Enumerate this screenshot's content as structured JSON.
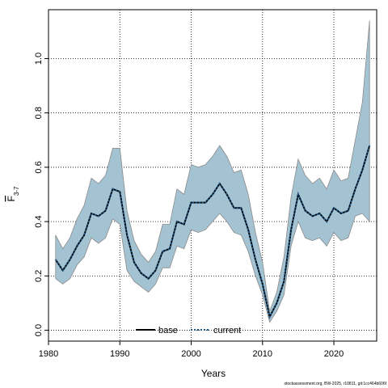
{
  "chart_data": {
    "type": "line",
    "xlabel": "Years",
    "ylabel": "F",
    "ylabel_sub": "3-7",
    "xlim": [
      1980,
      2026
    ],
    "ylim": [
      -0.04,
      1.18
    ],
    "xticks": [
      1980,
      1990,
      2000,
      2010,
      2020
    ],
    "yticks": [
      0.0,
      0.2,
      0.4,
      0.6,
      0.8,
      1.0
    ],
    "ytick_labels": [
      "0.0",
      "0.2",
      "0.4",
      "0.6",
      "0.8",
      "1.0"
    ],
    "grid": true,
    "legend_position": "bottom-center",
    "x": [
      1981,
      1982,
      1983,
      1984,
      1985,
      1986,
      1987,
      1988,
      1989,
      1990,
      1991,
      1992,
      1993,
      1994,
      1995,
      1996,
      1997,
      1998,
      1999,
      2000,
      2001,
      2002,
      2003,
      2004,
      2005,
      2006,
      2007,
      2008,
      2009,
      2010,
      2011,
      2012,
      2013,
      2014,
      2015,
      2016,
      2017,
      2018,
      2019,
      2020,
      2021,
      2022,
      2023,
      2024,
      2025
    ],
    "series": [
      {
        "name": "base",
        "style": "solid",
        "color": "#000000",
        "values": [
          0.26,
          0.22,
          0.26,
          0.31,
          0.35,
          0.43,
          0.42,
          0.44,
          0.52,
          0.51,
          0.35,
          0.25,
          0.21,
          0.19,
          0.22,
          0.29,
          0.3,
          0.4,
          0.39,
          0.47,
          0.47,
          0.47,
          0.5,
          0.54,
          0.5,
          0.45,
          0.45,
          0.37,
          0.26,
          0.17,
          0.05,
          0.1,
          0.18,
          0.37,
          0.5,
          0.44,
          0.42,
          0.43,
          0.4,
          0.45,
          0.43,
          0.44,
          0.52,
          0.59,
          0.68
        ]
      },
      {
        "name": "current",
        "style": "dotted",
        "color": "#1f5a8a",
        "values": [
          0.26,
          0.22,
          0.26,
          0.31,
          0.35,
          0.43,
          0.42,
          0.44,
          0.52,
          0.51,
          0.35,
          0.25,
          0.21,
          0.19,
          0.22,
          0.29,
          0.3,
          0.4,
          0.39,
          0.47,
          0.47,
          0.47,
          0.5,
          0.54,
          0.5,
          0.45,
          0.45,
          0.37,
          0.26,
          0.17,
          0.05,
          0.1,
          0.18,
          0.37,
          0.5,
          0.44,
          0.42,
          0.43,
          0.4,
          0.45,
          0.43,
          0.44,
          0.52,
          0.59,
          0.68
        ]
      }
    ],
    "band": {
      "color": "#a3c3d3",
      "lower": [
        0.19,
        0.17,
        0.19,
        0.24,
        0.27,
        0.34,
        0.32,
        0.34,
        0.41,
        0.39,
        0.22,
        0.18,
        0.16,
        0.14,
        0.17,
        0.23,
        0.23,
        0.31,
        0.3,
        0.37,
        0.36,
        0.37,
        0.4,
        0.43,
        0.4,
        0.36,
        0.35,
        0.29,
        0.2,
        0.13,
        0.03,
        0.07,
        0.13,
        0.31,
        0.4,
        0.34,
        0.33,
        0.34,
        0.31,
        0.36,
        0.33,
        0.34,
        0.42,
        0.43,
        0.4
      ],
      "upper": [
        0.35,
        0.3,
        0.34,
        0.41,
        0.46,
        0.56,
        0.54,
        0.57,
        0.67,
        0.67,
        0.44,
        0.33,
        0.28,
        0.25,
        0.29,
        0.39,
        0.39,
        0.52,
        0.5,
        0.61,
        0.6,
        0.61,
        0.64,
        0.68,
        0.64,
        0.58,
        0.59,
        0.5,
        0.36,
        0.25,
        0.07,
        0.14,
        0.27,
        0.49,
        0.63,
        0.57,
        0.54,
        0.56,
        0.52,
        0.59,
        0.55,
        0.56,
        0.7,
        0.84,
        1.14
      ]
    }
  },
  "legend": {
    "base_label": "base",
    "current_label": "current"
  },
  "footer": "stockassessment.org, BW-2025, r10811, git:1cc464b606f"
}
